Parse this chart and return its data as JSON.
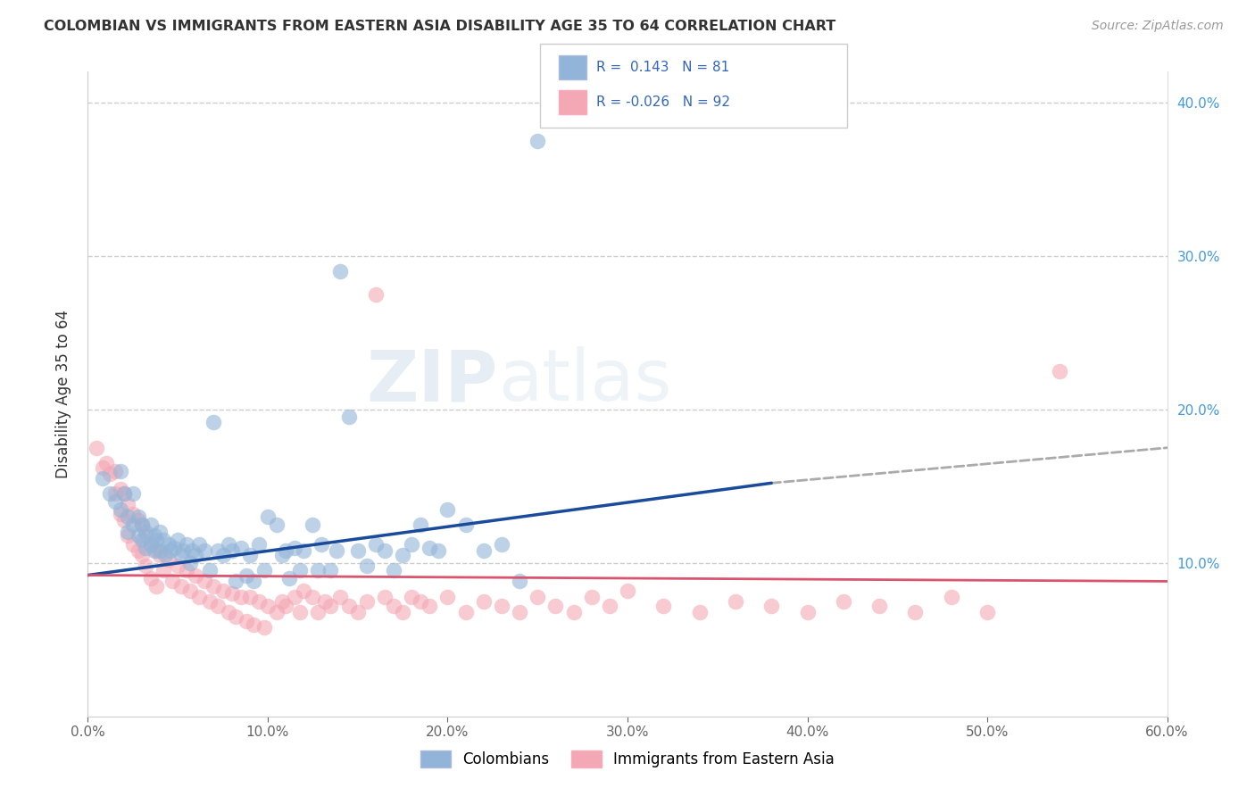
{
  "title": "COLOMBIAN VS IMMIGRANTS FROM EASTERN ASIA DISABILITY AGE 35 TO 64 CORRELATION CHART",
  "source": "Source: ZipAtlas.com",
  "ylabel": "Disability Age 35 to 64",
  "xlim": [
    0.0,
    0.6
  ],
  "ylim": [
    0.0,
    0.42
  ],
  "xticks": [
    0.0,
    0.1,
    0.2,
    0.3,
    0.4,
    0.5,
    0.6
  ],
  "yticks": [
    0.1,
    0.2,
    0.3,
    0.4
  ],
  "ytick_labels": [
    "10.0%",
    "20.0%",
    "30.0%",
    "40.0%"
  ],
  "xtick_labels": [
    "0.0%",
    "10.0%",
    "20.0%",
    "30.0%",
    "40.0%",
    "50.0%",
    "60.0%"
  ],
  "blue_R": 0.143,
  "blue_N": 81,
  "pink_R": -0.026,
  "pink_N": 92,
  "blue_color": "#92B4D8",
  "pink_color": "#F4A7B5",
  "blue_line_color": "#1A4A9A",
  "pink_line_color": "#D9546E",
  "legend_label_blue": "Colombians",
  "legend_label_pink": "Immigrants from Eastern Asia",
  "watermark_zip": "ZIP",
  "watermark_atlas": "atlas",
  "blue_scatter_x": [
    0.008,
    0.012,
    0.015,
    0.018,
    0.018,
    0.02,
    0.022,
    0.022,
    0.025,
    0.025,
    0.028,
    0.028,
    0.03,
    0.03,
    0.032,
    0.032,
    0.035,
    0.035,
    0.037,
    0.037,
    0.038,
    0.04,
    0.04,
    0.042,
    0.043,
    0.045,
    0.046,
    0.048,
    0.05,
    0.052,
    0.053,
    0.055,
    0.057,
    0.058,
    0.06,
    0.062,
    0.065,
    0.068,
    0.07,
    0.072,
    0.075,
    0.078,
    0.08,
    0.082,
    0.085,
    0.088,
    0.09,
    0.092,
    0.095,
    0.098,
    0.1,
    0.105,
    0.108,
    0.11,
    0.112,
    0.115,
    0.118,
    0.12,
    0.125,
    0.128,
    0.13,
    0.135,
    0.138,
    0.14,
    0.145,
    0.15,
    0.155,
    0.16,
    0.165,
    0.17,
    0.175,
    0.18,
    0.185,
    0.19,
    0.195,
    0.2,
    0.21,
    0.22,
    0.23,
    0.24,
    0.25
  ],
  "blue_scatter_y": [
    0.155,
    0.145,
    0.14,
    0.16,
    0.135,
    0.145,
    0.13,
    0.12,
    0.145,
    0.125,
    0.13,
    0.118,
    0.125,
    0.115,
    0.12,
    0.11,
    0.125,
    0.112,
    0.118,
    0.108,
    0.115,
    0.12,
    0.108,
    0.115,
    0.105,
    0.112,
    0.108,
    0.11,
    0.115,
    0.105,
    0.108,
    0.112,
    0.1,
    0.108,
    0.105,
    0.112,
    0.108,
    0.095,
    0.192,
    0.108,
    0.105,
    0.112,
    0.108,
    0.088,
    0.11,
    0.092,
    0.105,
    0.088,
    0.112,
    0.095,
    0.13,
    0.125,
    0.105,
    0.108,
    0.09,
    0.11,
    0.095,
    0.108,
    0.125,
    0.095,
    0.112,
    0.095,
    0.108,
    0.29,
    0.195,
    0.108,
    0.098,
    0.112,
    0.108,
    0.095,
    0.105,
    0.112,
    0.125,
    0.11,
    0.108,
    0.135,
    0.125,
    0.108,
    0.112,
    0.088,
    0.375
  ],
  "pink_scatter_x": [
    0.005,
    0.008,
    0.01,
    0.012,
    0.015,
    0.015,
    0.018,
    0.018,
    0.02,
    0.02,
    0.022,
    0.022,
    0.025,
    0.025,
    0.028,
    0.028,
    0.03,
    0.03,
    0.032,
    0.032,
    0.035,
    0.035,
    0.038,
    0.038,
    0.04,
    0.042,
    0.045,
    0.047,
    0.05,
    0.052,
    0.055,
    0.057,
    0.06,
    0.062,
    0.065,
    0.068,
    0.07,
    0.072,
    0.075,
    0.078,
    0.08,
    0.082,
    0.085,
    0.088,
    0.09,
    0.092,
    0.095,
    0.098,
    0.1,
    0.105,
    0.108,
    0.11,
    0.115,
    0.118,
    0.12,
    0.125,
    0.128,
    0.132,
    0.135,
    0.14,
    0.145,
    0.15,
    0.155,
    0.16,
    0.165,
    0.17,
    0.175,
    0.18,
    0.185,
    0.19,
    0.2,
    0.21,
    0.22,
    0.23,
    0.24,
    0.25,
    0.26,
    0.27,
    0.28,
    0.29,
    0.3,
    0.32,
    0.34,
    0.36,
    0.38,
    0.4,
    0.42,
    0.44,
    0.46,
    0.48,
    0.5,
    0.54
  ],
  "pink_scatter_y": [
    0.175,
    0.162,
    0.165,
    0.158,
    0.16,
    0.145,
    0.148,
    0.132,
    0.145,
    0.128,
    0.138,
    0.118,
    0.132,
    0.112,
    0.128,
    0.108,
    0.125,
    0.105,
    0.118,
    0.098,
    0.112,
    0.09,
    0.108,
    0.085,
    0.105,
    0.095,
    0.102,
    0.088,
    0.098,
    0.085,
    0.095,
    0.082,
    0.092,
    0.078,
    0.088,
    0.075,
    0.085,
    0.072,
    0.082,
    0.068,
    0.08,
    0.065,
    0.078,
    0.062,
    0.078,
    0.06,
    0.075,
    0.058,
    0.072,
    0.068,
    0.075,
    0.072,
    0.078,
    0.068,
    0.082,
    0.078,
    0.068,
    0.075,
    0.072,
    0.078,
    0.072,
    0.068,
    0.075,
    0.275,
    0.078,
    0.072,
    0.068,
    0.078,
    0.075,
    0.072,
    0.078,
    0.068,
    0.075,
    0.072,
    0.068,
    0.078,
    0.072,
    0.068,
    0.078,
    0.072,
    0.082,
    0.072,
    0.068,
    0.075,
    0.072,
    0.068,
    0.075,
    0.072,
    0.068,
    0.078,
    0.068,
    0.225
  ],
  "blue_line_x0": 0.0,
  "blue_line_x1": 0.38,
  "blue_line_y0": 0.092,
  "blue_line_y1": 0.152,
  "dashed_line_x0": 0.38,
  "dashed_line_x1": 0.6,
  "dashed_line_y0": 0.152,
  "dashed_line_y1": 0.175,
  "pink_line_x0": 0.0,
  "pink_line_x1": 0.6,
  "pink_line_y0": 0.092,
  "pink_line_y1": 0.088
}
